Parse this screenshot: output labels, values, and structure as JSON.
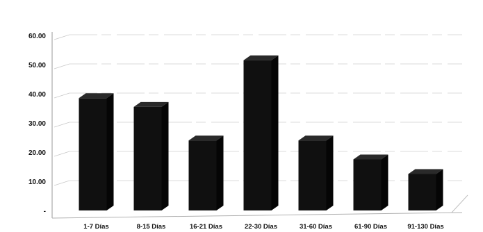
{
  "chart_data": {
    "type": "bar",
    "style": "3d-column",
    "categories": [
      "1-7 Días",
      "8-15 Días",
      "16-21 Días",
      "22-30 Días",
      "31-60 Días",
      "61-90 Días",
      "91-130 Días"
    ],
    "values": [
      38.5,
      35.5,
      24,
      51.5,
      24,
      17.5,
      12.5
    ],
    "ylim": [
      0,
      60
    ],
    "yticks": [
      0,
      10,
      20,
      30,
      40,
      50,
      60
    ],
    "ytick_labels": [
      "-",
      "10.00",
      "20.00",
      "30.00",
      "40.00",
      "50.00",
      "60.00"
    ],
    "grid": true,
    "legend": "none",
    "bar_color": "#101010"
  }
}
